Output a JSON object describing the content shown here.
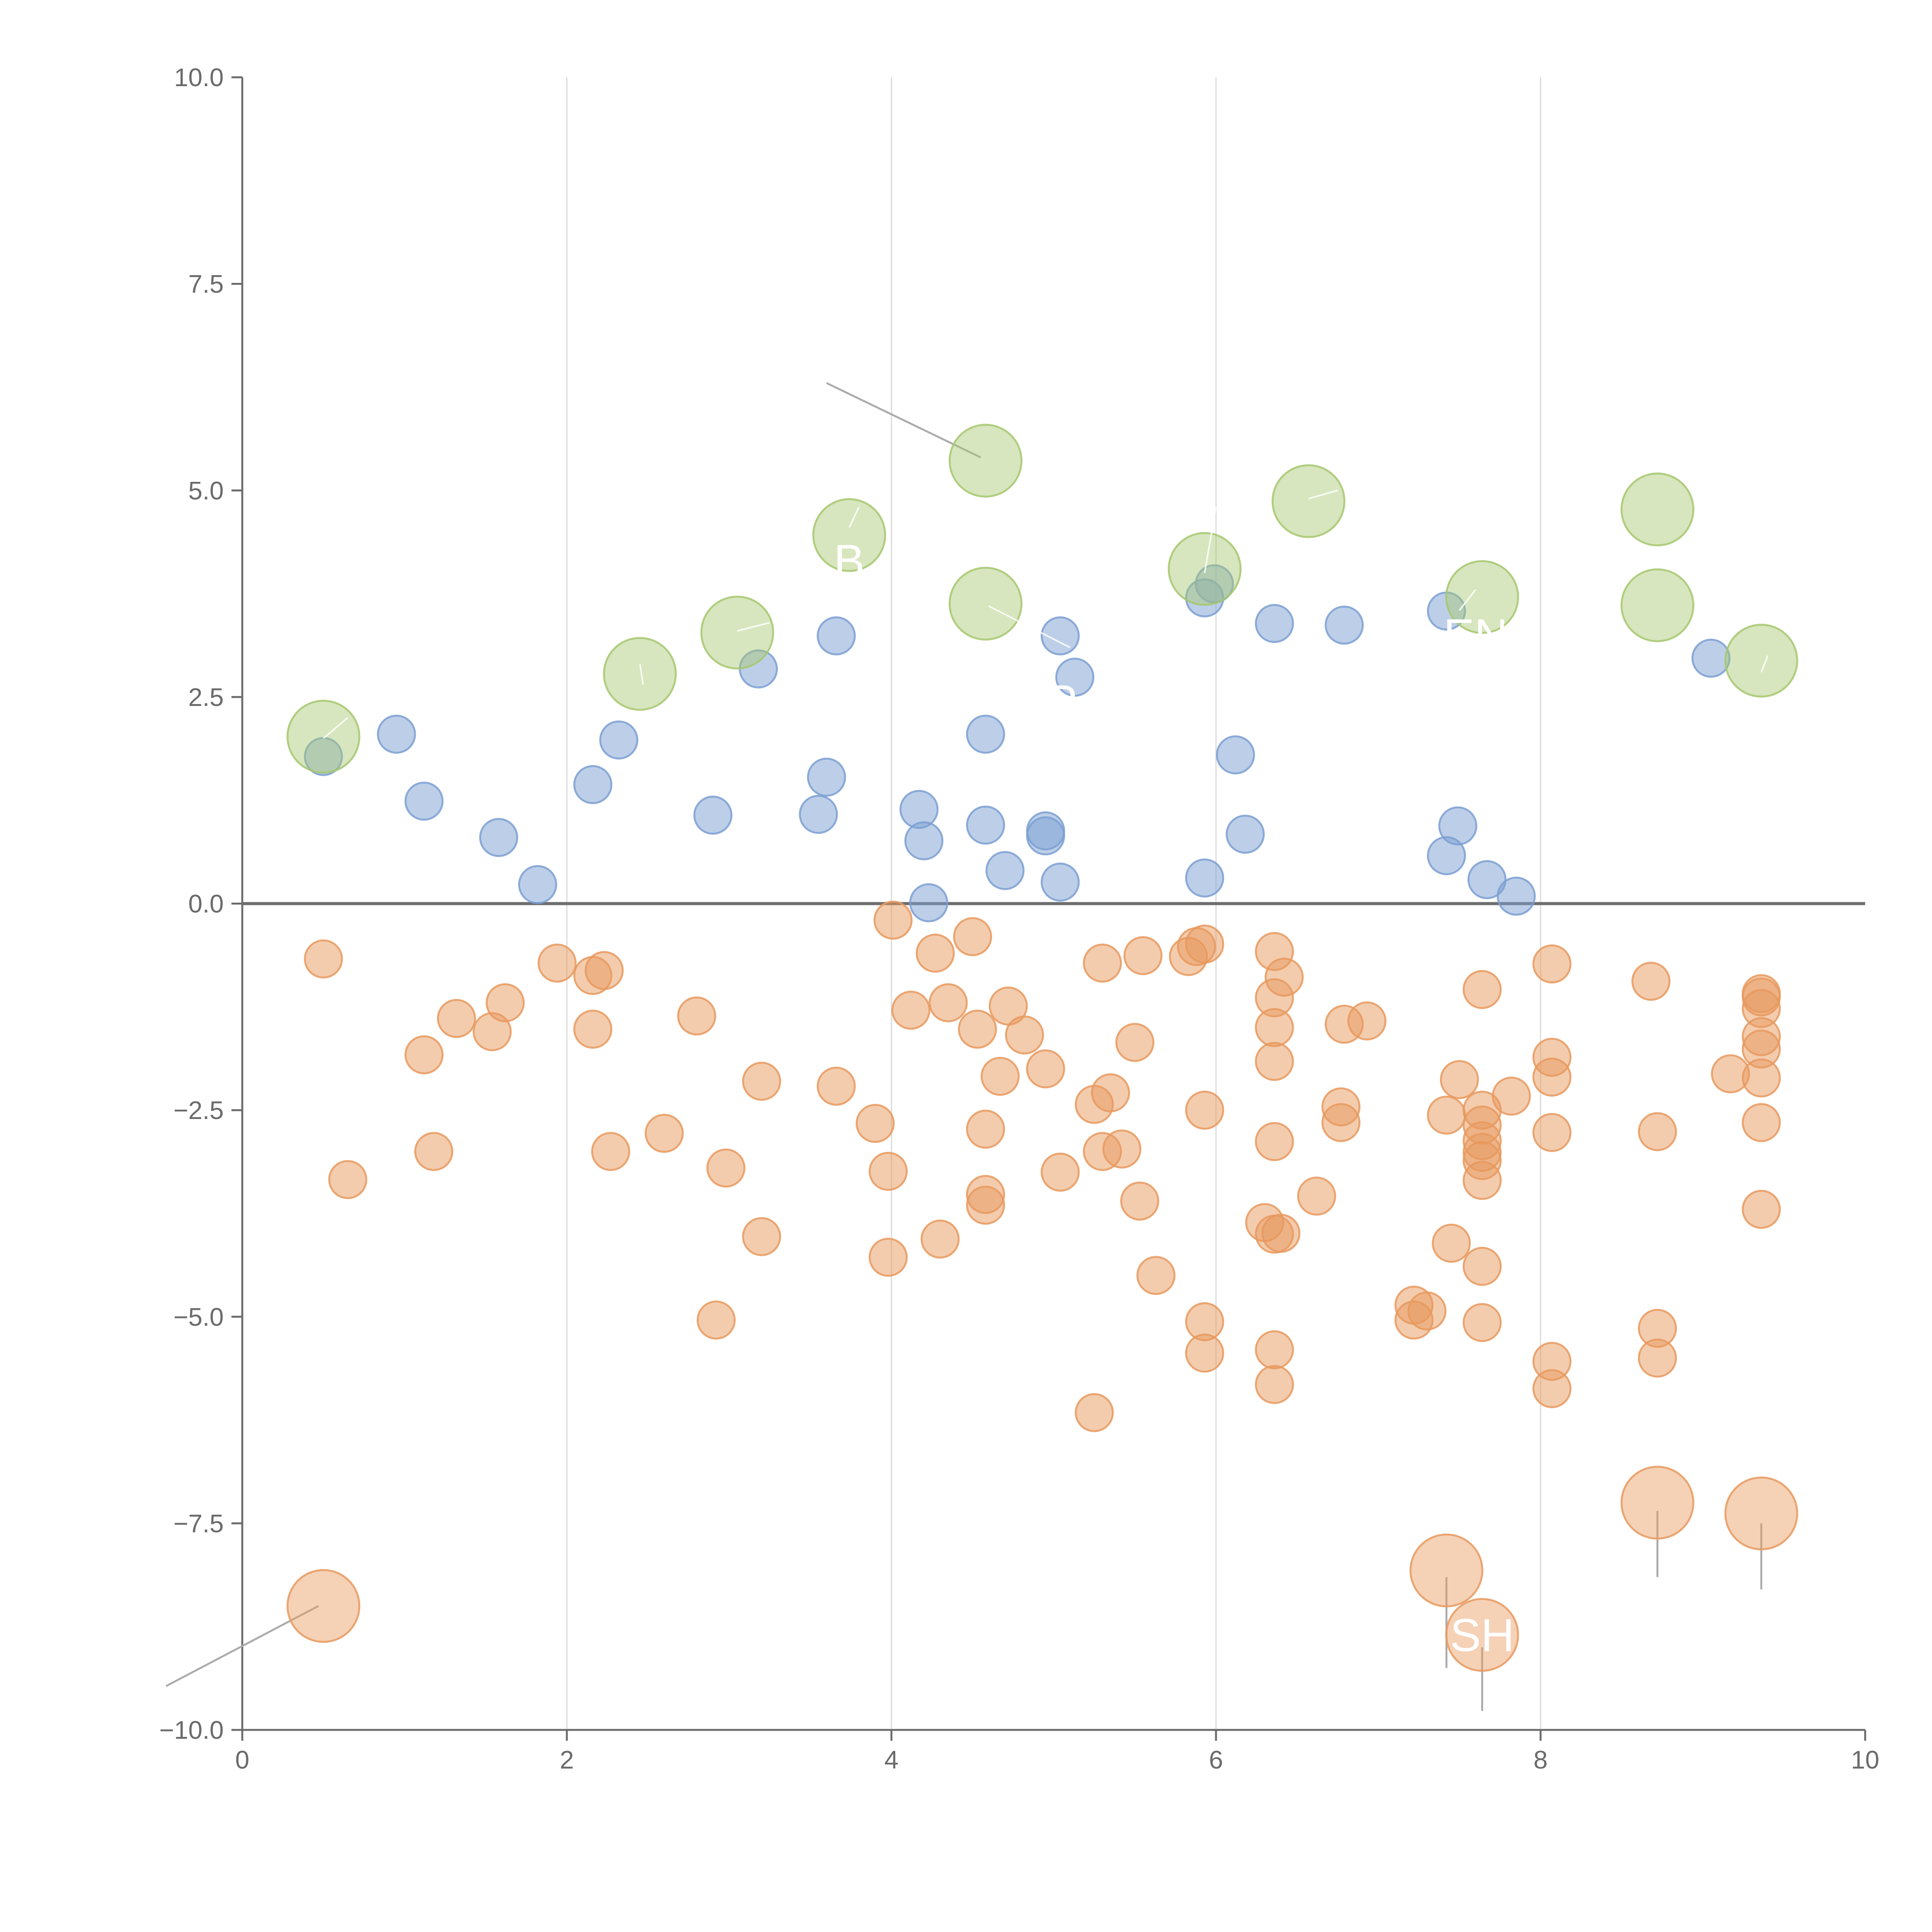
{
  "chart_data": {
    "type": "scatter",
    "title": "",
    "xlabel": "",
    "ylabel": "",
    "xlim": [
      0,
      10
    ],
    "ylim": [
      -10,
      10
    ],
    "x_ticks": [
      0,
      2,
      4,
      6,
      8,
      10
    ],
    "x_tick_labels": [
      "0",
      "2",
      "4",
      "6",
      "8",
      "10"
    ],
    "y_ticks": [
      -10,
      -7.5,
      -5,
      -2.5,
      0,
      2.5,
      5,
      7.5,
      10
    ],
    "y_tick_labels": [
      "−10.0",
      "−7.5",
      "−5.0",
      "−2.5",
      "0.0",
      "2.5",
      "5.0",
      "7.5",
      "10.0"
    ],
    "grid": "vertical",
    "reference_line_y": 0,
    "colors": {
      "blue": "#7b9fd2",
      "orange": "#e8995e",
      "green": "#a6c76e",
      "grid": "#d9d9d9",
      "axis": "#6b6b6b"
    },
    "series": [
      {
        "name": "blue-small",
        "color": "#7b9fd2",
        "size": "small",
        "points": [
          [
            0.5,
            1.78
          ],
          [
            0.95,
            2.05
          ],
          [
            1.12,
            1.24
          ],
          [
            1.58,
            0.8
          ],
          [
            1.82,
            0.23
          ],
          [
            2.16,
            1.44
          ],
          [
            2.32,
            1.98
          ],
          [
            2.9,
            1.07
          ],
          [
            3.18,
            2.84
          ],
          [
            3.55,
            1.08
          ],
          [
            3.6,
            1.53
          ],
          [
            3.66,
            3.24
          ],
          [
            4.17,
            1.14
          ],
          [
            4.2,
            0.76
          ],
          [
            4.23,
            0.01
          ],
          [
            4.58,
            2.05
          ],
          [
            4.58,
            0.95
          ],
          [
            4.7,
            0.4
          ],
          [
            4.95,
            0.88
          ],
          [
            4.95,
            0.82
          ],
          [
            5.04,
            3.24
          ],
          [
            5.04,
            0.26
          ],
          [
            5.13,
            2.74
          ],
          [
            5.93,
            3.7
          ],
          [
            5.99,
            3.87
          ],
          [
            5.93,
            0.31
          ],
          [
            6.12,
            1.8
          ],
          [
            6.18,
            0.84
          ],
          [
            6.36,
            3.39
          ],
          [
            6.79,
            3.37
          ],
          [
            7.42,
            3.54
          ],
          [
            7.42,
            0.58
          ],
          [
            7.49,
            0.94
          ],
          [
            7.67,
            0.29
          ],
          [
            7.85,
            0.09
          ],
          [
            9.05,
            2.97
          ]
        ]
      },
      {
        "name": "orange-small",
        "color": "#e8995e",
        "size": "small",
        "points": [
          [
            0.5,
            -0.67
          ],
          [
            0.65,
            -3.34
          ],
          [
            1.12,
            -1.83
          ],
          [
            1.18,
            -3.0
          ],
          [
            1.32,
            -1.39
          ],
          [
            1.54,
            -1.55
          ],
          [
            1.62,
            -1.2
          ],
          [
            1.94,
            -0.72
          ],
          [
            2.16,
            -0.87
          ],
          [
            2.16,
            -1.52
          ],
          [
            2.23,
            -0.81
          ],
          [
            2.27,
            -3.0
          ],
          [
            2.6,
            -2.78
          ],
          [
            2.8,
            -1.36
          ],
          [
            2.92,
            -5.04
          ],
          [
            2.98,
            -3.2
          ],
          [
            3.2,
            -2.15
          ],
          [
            3.2,
            -4.03
          ],
          [
            3.66,
            -2.21
          ],
          [
            3.9,
            -2.66
          ],
          [
            3.98,
            -3.24
          ],
          [
            3.98,
            -4.28
          ],
          [
            4.01,
            -0.2
          ],
          [
            4.12,
            -1.29
          ],
          [
            4.27,
            -0.6
          ],
          [
            4.3,
            -4.06
          ],
          [
            4.35,
            -1.2
          ],
          [
            4.5,
            -0.4
          ],
          [
            4.53,
            -1.52
          ],
          [
            4.58,
            -2.73
          ],
          [
            4.58,
            -3.52
          ],
          [
            4.58,
            -3.65
          ],
          [
            4.67,
            -2.09
          ],
          [
            4.72,
            -1.24
          ],
          [
            4.82,
            -1.59
          ],
          [
            4.95,
            -2.0
          ],
          [
            5.04,
            -3.25
          ],
          [
            5.25,
            -2.43
          ],
          [
            5.25,
            -6.16
          ],
          [
            5.3,
            -0.72
          ],
          [
            5.3,
            -3.0
          ],
          [
            5.35,
            -2.29
          ],
          [
            5.42,
            -2.97
          ],
          [
            5.5,
            -1.68
          ],
          [
            5.53,
            -3.6
          ],
          [
            5.55,
            -0.63
          ],
          [
            5.63,
            -4.5
          ],
          [
            5.83,
            -0.64
          ],
          [
            5.88,
            -0.52
          ],
          [
            5.93,
            -0.49
          ],
          [
            5.93,
            -2.5
          ],
          [
            5.93,
            -5.06
          ],
          [
            5.93,
            -5.44
          ],
          [
            6.3,
            -3.86
          ],
          [
            6.36,
            -0.58
          ],
          [
            6.36,
            -1.14
          ],
          [
            6.36,
            -1.5
          ],
          [
            6.36,
            -1.91
          ],
          [
            6.36,
            -2.88
          ],
          [
            6.36,
            -4.0
          ],
          [
            6.36,
            -5.4
          ],
          [
            6.36,
            -5.82
          ],
          [
            6.42,
            -0.89
          ],
          [
            6.4,
            -3.99
          ],
          [
            6.62,
            -3.54
          ],
          [
            6.77,
            -2.46
          ],
          [
            6.77,
            -2.65
          ],
          [
            6.79,
            -1.46
          ],
          [
            6.93,
            -1.42
          ],
          [
            7.22,
            -4.86
          ],
          [
            7.22,
            -5.04
          ],
          [
            7.3,
            -4.93
          ],
          [
            7.42,
            -2.56
          ],
          [
            7.45,
            -4.11
          ],
          [
            7.5,
            -2.13
          ],
          [
            7.64,
            -1.04
          ],
          [
            7.64,
            -2.5
          ],
          [
            7.64,
            -2.68
          ],
          [
            7.64,
            -2.87
          ],
          [
            7.64,
            -3.01
          ],
          [
            7.64,
            -3.11
          ],
          [
            7.64,
            -3.35
          ],
          [
            7.64,
            -4.39
          ],
          [
            7.64,
            -5.07
          ],
          [
            7.82,
            -2.33
          ],
          [
            8.07,
            -0.73
          ],
          [
            8.07,
            -1.86
          ],
          [
            8.07,
            -2.1
          ],
          [
            8.07,
            -2.77
          ],
          [
            8.07,
            -5.54
          ],
          [
            8.07,
            -5.87
          ],
          [
            8.68,
            -0.94
          ],
          [
            8.72,
            -2.76
          ],
          [
            8.72,
            -5.14
          ],
          [
            8.72,
            -5.5
          ],
          [
            9.17,
            -2.06
          ],
          [
            9.36,
            -1.09
          ],
          [
            9.36,
            -1.13
          ],
          [
            9.36,
            -1.27
          ],
          [
            9.36,
            -1.61
          ],
          [
            9.36,
            -1.76
          ],
          [
            9.36,
            -2.11
          ],
          [
            9.36,
            -2.65
          ],
          [
            9.36,
            -3.7
          ]
        ]
      },
      {
        "name": "green-large",
        "color": "#a6c76e",
        "size": "large",
        "points": [
          [
            0.5,
            2.02
          ],
          [
            2.45,
            2.78
          ],
          [
            3.05,
            3.28
          ],
          [
            3.74,
            4.46
          ],
          [
            4.58,
            5.36
          ],
          [
            4.58,
            3.63
          ],
          [
            5.93,
            4.05
          ],
          [
            6.57,
            4.87
          ],
          [
            7.64,
            3.71
          ],
          [
            8.72,
            4.77
          ],
          [
            8.72,
            3.61
          ],
          [
            9.36,
            2.94
          ]
        ]
      },
      {
        "name": "orange-large",
        "color": "#e8995e",
        "size": "large",
        "points": [
          [
            0.5,
            -8.5
          ],
          [
            7.42,
            -8.07
          ],
          [
            7.64,
            -8.85
          ],
          [
            8.72,
            -7.25
          ],
          [
            9.36,
            -7.38
          ]
        ]
      }
    ],
    "annotations": [
      {
        "label": "B",
        "x": 3.74,
        "y": 4.15
      },
      {
        "label": "P",
        "x": 5.05,
        "y": 2.45
      },
      {
        "label": "EN",
        "x": 7.6,
        "y": 3.25
      },
      {
        "label": "SH",
        "x": 7.64,
        "y": -8.85
      }
    ]
  }
}
